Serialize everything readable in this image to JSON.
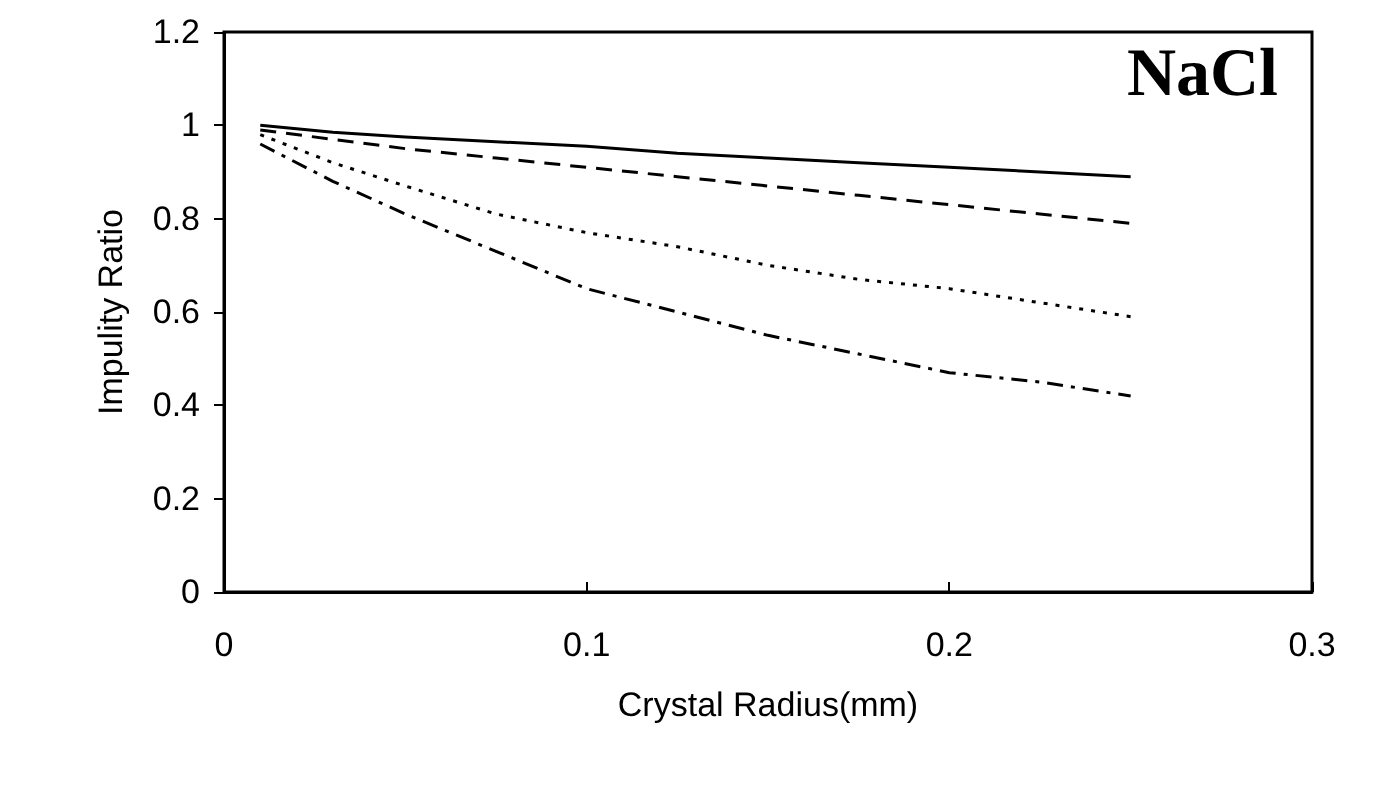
{
  "chart_data": {
    "type": "line",
    "xlabel": "Crystal Radius(mm)",
    "ylabel": "Impulity Ratio",
    "annotations": [
      "NaCl"
    ],
    "x": [
      0.01,
      0.03,
      0.05,
      0.075,
      0.1,
      0.125,
      0.15,
      0.175,
      0.2,
      0.225,
      0.25
    ],
    "series": [
      {
        "color": "#000000",
        "line_style": "solid",
        "values": [
          1.0,
          0.985,
          0.975,
          0.965,
          0.955,
          0.94,
          0.93,
          0.92,
          0.91,
          0.9,
          0.89
        ]
      },
      {
        "color": "#000000",
        "line_style": "dashed",
        "values": [
          0.99,
          0.97,
          0.95,
          0.93,
          0.91,
          0.89,
          0.87,
          0.85,
          0.83,
          0.81,
          0.79
        ]
      },
      {
        "color": "#000000",
        "line_style": "dotted",
        "values": [
          0.98,
          0.92,
          0.87,
          0.81,
          0.77,
          0.74,
          0.7,
          0.67,
          0.65,
          0.62,
          0.59
        ]
      },
      {
        "color": "#000000",
        "line_style": "dashdot",
        "values": [
          0.96,
          0.88,
          0.81,
          0.73,
          0.65,
          0.6,
          0.55,
          0.51,
          0.47,
          0.45,
          0.42
        ]
      }
    ],
    "xlim": [
      0,
      0.3
    ],
    "xticks": [
      0,
      0.1,
      0.2,
      0.3
    ],
    "ylim": [
      0,
      1.2
    ],
    "yticks": [
      0,
      0.2,
      0.4,
      0.6,
      0.8,
      1,
      1.2
    ],
    "grid": false,
    "marker": "none"
  }
}
